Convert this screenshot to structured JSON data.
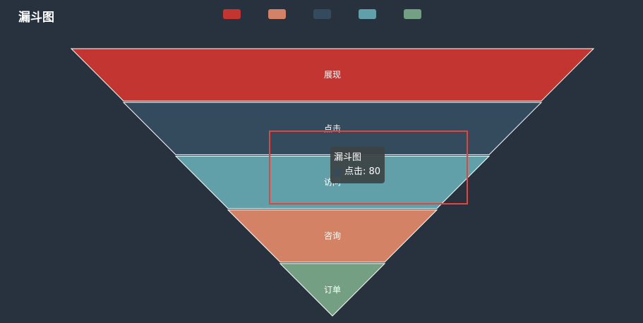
{
  "chart_title": "漏斗图",
  "colors": {
    "background": "#28323e",
    "segment_stroke": "#ffffff",
    "highlight": "#e8423a"
  },
  "chart_data": {
    "type": "funnel",
    "title": "漏斗图",
    "legend_position": "top-center",
    "sort": "descending",
    "max": 100,
    "series": [
      {
        "data": [
          {
            "name": "展现",
            "value": 100,
            "color": "#c23531"
          },
          {
            "name": "点击",
            "value": 80,
            "color": "#334b5c"
          },
          {
            "name": "访问",
            "value": 60,
            "color": "#61a0a8"
          },
          {
            "name": "咨询",
            "value": 40,
            "color": "#d48265"
          },
          {
            "name": "订单",
            "value": 20,
            "color": "#749f83"
          }
        ]
      }
    ],
    "legend": [
      {
        "name": "展现",
        "color": "#c23531"
      },
      {
        "name": "咨询",
        "color": "#d48265"
      },
      {
        "name": "点击",
        "color": "#334b5c"
      },
      {
        "name": "访问",
        "color": "#61a0a8"
      },
      {
        "name": "订单",
        "color": "#749f83"
      }
    ]
  },
  "tooltip": {
    "title": "漏斗图",
    "item_name": "点击",
    "item_value": "80",
    "dot_color": "#334b5c"
  }
}
